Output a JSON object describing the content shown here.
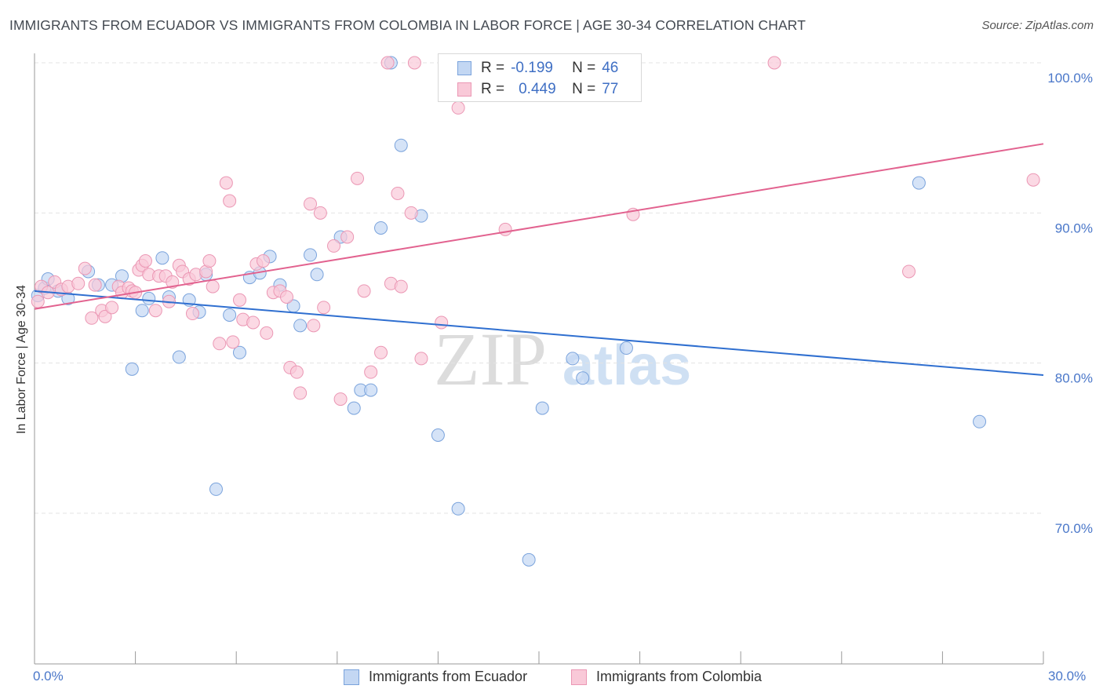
{
  "title": "IMMIGRANTS FROM ECUADOR VS IMMIGRANTS FROM COLOMBIA IN LABOR FORCE | AGE 30-34 CORRELATION CHART",
  "source": "Source: ZipAtlas.com",
  "watermark": "ZIPatlas",
  "legend": {
    "r_label": "R =",
    "n_label": "N =",
    "series": [
      {
        "r": "-0.199",
        "n": "46"
      },
      {
        "r": "0.449",
        "n": "77"
      }
    ]
  },
  "colors": {
    "ecuador_fill": "#c3d7f3",
    "ecuador_stroke": "#7aa3dc",
    "ecuador_line": "#2f6fd0",
    "colombia_fill": "#f9c9d8",
    "colombia_stroke": "#eb97b4",
    "colombia_line": "#e2628f",
    "tick_text": "#4a77c9"
  },
  "chart_data": {
    "type": "scatter",
    "title": "IMMIGRANTS FROM ECUADOR VS IMMIGRANTS FROM COLOMBIA IN LABOR FORCE | AGE 30-34 CORRELATION CHART",
    "xlabel": "",
    "ylabel": "In Labor Force | Age 30-34",
    "xlim": [
      0,
      30
    ],
    "ylim": [
      60,
      101
    ],
    "x_tick_labels": [
      "0.0%",
      "30.0%"
    ],
    "y_ticks": [
      70,
      80,
      90,
      100
    ],
    "y_tick_labels": [
      "70.0%",
      "80.0%",
      "90.0%",
      "100.0%"
    ],
    "grid": true,
    "series": [
      {
        "name": "Immigrants from Ecuador",
        "r": -0.199,
        "n": 46,
        "trend": {
          "x": [
            0,
            30
          ],
          "y": [
            84.8,
            79.2
          ]
        },
        "points": [
          [
            0.1,
            84.5
          ],
          [
            0.3,
            85.0
          ],
          [
            0.4,
            85.6
          ],
          [
            0.7,
            84.8
          ],
          [
            1.0,
            84.3
          ],
          [
            1.6,
            86.1
          ],
          [
            1.9,
            85.2
          ],
          [
            2.3,
            85.2
          ],
          [
            2.6,
            85.8
          ],
          [
            2.9,
            79.6
          ],
          [
            3.2,
            83.5
          ],
          [
            3.4,
            84.3
          ],
          [
            3.8,
            87.0
          ],
          [
            4.0,
            84.4
          ],
          [
            4.3,
            80.4
          ],
          [
            4.6,
            84.2
          ],
          [
            4.9,
            83.4
          ],
          [
            5.1,
            85.9
          ],
          [
            5.4,
            71.6
          ],
          [
            5.8,
            83.2
          ],
          [
            6.1,
            80.7
          ],
          [
            6.4,
            85.7
          ],
          [
            6.7,
            86.0
          ],
          [
            7.0,
            87.1
          ],
          [
            7.3,
            85.2
          ],
          [
            7.7,
            83.8
          ],
          [
            7.9,
            82.5
          ],
          [
            8.2,
            87.2
          ],
          [
            8.4,
            85.9
          ],
          [
            9.1,
            88.4
          ],
          [
            9.5,
            77.0
          ],
          [
            9.7,
            78.2
          ],
          [
            10.0,
            78.2
          ],
          [
            10.3,
            89.0
          ],
          [
            10.6,
            100.0
          ],
          [
            10.9,
            94.5
          ],
          [
            11.5,
            89.8
          ],
          [
            12.0,
            75.2
          ],
          [
            12.6,
            70.3
          ],
          [
            14.7,
            66.9
          ],
          [
            15.1,
            77.0
          ],
          [
            16.0,
            80.3
          ],
          [
            16.3,
            79.0
          ],
          [
            17.6,
            81.0
          ],
          [
            26.3,
            92.0
          ],
          [
            28.1,
            76.1
          ]
        ]
      },
      {
        "name": "Immigrants from Colombia",
        "r": 0.449,
        "n": 77,
        "trend": {
          "x": [
            0,
            30
          ],
          "y": [
            83.6,
            94.6
          ]
        },
        "points": [
          [
            0.1,
            84.1
          ],
          [
            0.2,
            85.1
          ],
          [
            0.4,
            84.7
          ],
          [
            0.6,
            85.4
          ],
          [
            0.8,
            84.9
          ],
          [
            1.0,
            85.1
          ],
          [
            1.3,
            85.3
          ],
          [
            1.5,
            86.3
          ],
          [
            1.7,
            83.0
          ],
          [
            1.8,
            85.2
          ],
          [
            2.0,
            83.5
          ],
          [
            2.1,
            83.1
          ],
          [
            2.3,
            83.7
          ],
          [
            2.5,
            85.1
          ],
          [
            2.6,
            84.7
          ],
          [
            2.8,
            85.0
          ],
          [
            2.9,
            84.8
          ],
          [
            3.1,
            86.2
          ],
          [
            3.2,
            86.5
          ],
          [
            3.3,
            86.8
          ],
          [
            3.4,
            85.9
          ],
          [
            3.6,
            83.5
          ],
          [
            3.7,
            85.8
          ],
          [
            3.9,
            85.8
          ],
          [
            4.0,
            84.1
          ],
          [
            4.1,
            85.4
          ],
          [
            4.3,
            86.5
          ],
          [
            4.4,
            86.1
          ],
          [
            4.6,
            85.6
          ],
          [
            4.7,
            83.3
          ],
          [
            4.8,
            85.9
          ],
          [
            5.1,
            86.1
          ],
          [
            5.2,
            86.8
          ],
          [
            5.3,
            85.1
          ],
          [
            5.5,
            81.3
          ],
          [
            5.7,
            92.0
          ],
          [
            5.8,
            90.8
          ],
          [
            5.9,
            81.4
          ],
          [
            6.1,
            84.2
          ],
          [
            6.2,
            82.9
          ],
          [
            6.5,
            82.7
          ],
          [
            6.6,
            86.6
          ],
          [
            6.8,
            86.8
          ],
          [
            6.9,
            82.0
          ],
          [
            7.1,
            84.7
          ],
          [
            7.3,
            84.8
          ],
          [
            7.6,
            79.7
          ],
          [
            7.8,
            79.4
          ],
          [
            7.9,
            78.0
          ],
          [
            8.2,
            90.6
          ],
          [
            8.3,
            82.5
          ],
          [
            8.5,
            90.0
          ],
          [
            8.6,
            83.7
          ],
          [
            8.9,
            87.8
          ],
          [
            9.1,
            77.6
          ],
          [
            9.3,
            88.4
          ],
          [
            9.6,
            92.3
          ],
          [
            9.8,
            84.8
          ],
          [
            10.0,
            79.4
          ],
          [
            10.3,
            80.7
          ],
          [
            10.6,
            85.3
          ],
          [
            10.8,
            91.3
          ],
          [
            10.9,
            85.1
          ],
          [
            11.2,
            90.0
          ],
          [
            11.3,
            100.0
          ],
          [
            11.5,
            80.3
          ],
          [
            12.1,
            82.7
          ],
          [
            12.6,
            97.0
          ],
          [
            14.0,
            88.9
          ],
          [
            16.5,
            100.0
          ],
          [
            17.8,
            89.9
          ],
          [
            22.0,
            100.0
          ],
          [
            26.0,
            86.1
          ],
          [
            29.7,
            92.2
          ],
          [
            10.5,
            100.0
          ],
          [
            7.5,
            84.4
          ],
          [
            3.0,
            84.7
          ]
        ]
      }
    ]
  },
  "bottom_legend": [
    "Immigrants from Ecuador",
    "Immigrants from Colombia"
  ]
}
